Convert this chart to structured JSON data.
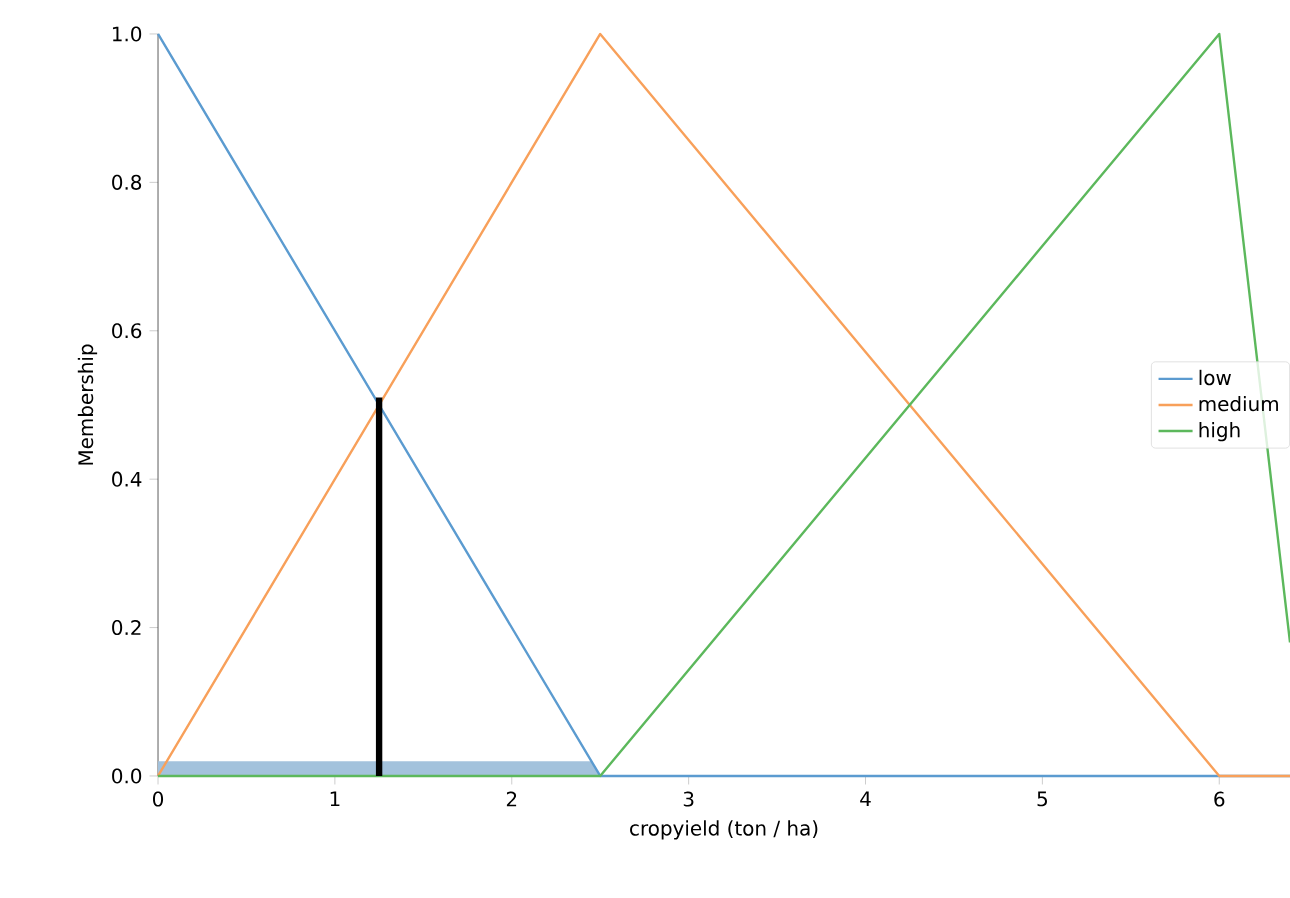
{
  "chart_data": {
    "type": "line",
    "xlabel": "cropyield (ton / ha)",
    "ylabel": "Membership",
    "xlim": [
      0,
      6.4
    ],
    "ylim": [
      0,
      1
    ],
    "xticks": [
      0,
      1,
      2,
      3,
      4,
      5,
      6
    ],
    "yticks": [
      {
        "value": 0,
        "label": "0.0"
      },
      {
        "value": 0.2,
        "label": "0.2"
      },
      {
        "value": 0.4,
        "label": "0.4"
      },
      {
        "value": 0.6,
        "label": "0.6"
      },
      {
        "value": 0.8,
        "label": "0.8"
      },
      {
        "value": 1,
        "label": "1.0"
      }
    ],
    "legend": "right",
    "grid": false,
    "series": [
      {
        "type": "area",
        "color": "#a3c2dc",
        "x": [
          0,
          2.45,
          2.5
        ],
        "values": [
          0.02,
          0.02,
          0
        ]
      },
      {
        "name": "low",
        "color": "#5b9bd0",
        "x": [
          0,
          2.5,
          6.4
        ],
        "values": [
          1,
          0,
          0
        ]
      },
      {
        "name": "medium",
        "color": "#f8a05a",
        "x": [
          0,
          2.5,
          6,
          6.4
        ],
        "values": [
          0,
          1,
          0,
          0
        ]
      },
      {
        "name": "high",
        "color": "#5cb85c",
        "x": [
          0,
          2.5,
          6,
          6.4
        ],
        "values": [
          0,
          0,
          1,
          0.18
        ]
      },
      {
        "color": "#000000",
        "x": [
          1.25,
          1.25
        ],
        "values": [
          0,
          0.51
        ]
      }
    ]
  }
}
